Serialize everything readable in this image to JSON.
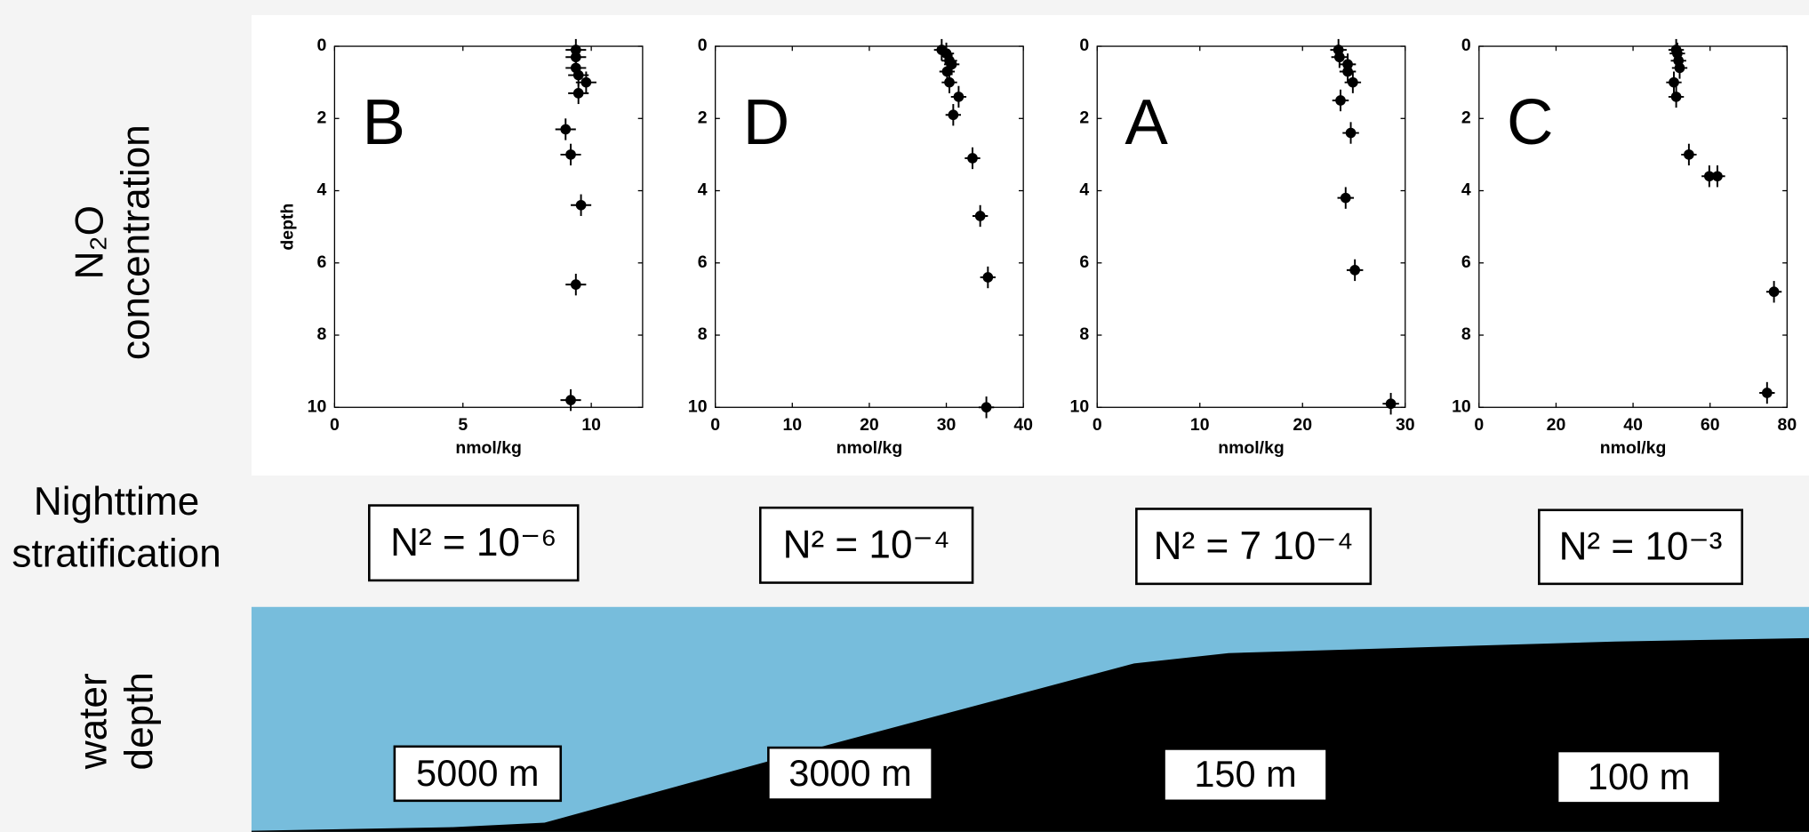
{
  "chart_data": [
    {
      "type": "scatter",
      "letter": "B",
      "letter_color": "#ff00ff",
      "xlabel": "nmol/kg",
      "ylabel": "depth",
      "color": "#000000",
      "x": [
        9.4,
        9.4,
        9.4,
        9.5,
        9.8,
        9.5,
        9.0,
        9.2,
        9.6,
        9.4,
        9.2
      ],
      "y": [
        0.1,
        0.3,
        0.6,
        0.8,
        1.0,
        1.3,
        2.3,
        3.0,
        4.4,
        6.6,
        9.8
      ],
      "xerr": 0.4,
      "yerr": 0.3,
      "xlim": [
        0,
        12
      ],
      "xticks": [
        0,
        5,
        10
      ],
      "ylim": [
        0,
        10
      ],
      "yticks": [
        0,
        2,
        4,
        6,
        8,
        10
      ],
      "y_inverted": true
    },
    {
      "type": "scatter",
      "letter": "D",
      "letter_color": "#fdb714",
      "xlabel": "nmol/kg",
      "color": "#000000",
      "x": [
        29.4,
        30.0,
        30.4,
        30.7,
        30.1,
        30.4,
        31.6,
        30.9,
        33.4,
        34.4,
        35.4,
        35.2
      ],
      "y": [
        0.1,
        0.2,
        0.4,
        0.5,
        0.7,
        1.0,
        1.4,
        1.9,
        3.1,
        4.7,
        6.4,
        10.0
      ],
      "xerr": 1,
      "yerr": 0.3,
      "xlim": [
        0,
        40
      ],
      "xticks": [
        0,
        10,
        20,
        30,
        40
      ],
      "ylim": [
        0,
        10
      ],
      "yticks": [
        0,
        2,
        4,
        6,
        8,
        10
      ],
      "y_inverted": true
    },
    {
      "type": "scatter",
      "letter": "A",
      "letter_color": "#00e0e0",
      "xlabel": "nmol/kg",
      "color": "#000000",
      "x": [
        23.5,
        23.6,
        24.4,
        24.4,
        24.9,
        23.7,
        24.7,
        24.2,
        25.1,
        28.6
      ],
      "y": [
        0.1,
        0.3,
        0.5,
        0.7,
        1.0,
        1.5,
        2.4,
        4.2,
        6.2,
        9.9
      ],
      "xerr": 0.8,
      "yerr": 0.3,
      "xlim": [
        0,
        30
      ],
      "xticks": [
        0,
        10,
        20,
        30
      ],
      "ylim": [
        0,
        10
      ],
      "yticks": [
        0,
        2,
        4,
        6,
        8,
        10
      ],
      "y_inverted": true
    },
    {
      "type": "scatter",
      "letter": "C",
      "letter_color": "#000000",
      "xlabel": "nmol/kg",
      "color": "#000000",
      "x": [
        51.2,
        51.5,
        51.8,
        52.1,
        50.6,
        51.2,
        54.5,
        59.8,
        61.9,
        76.6,
        74.8
      ],
      "y": [
        0.1,
        0.2,
        0.4,
        0.6,
        1.0,
        1.4,
        3.0,
        3.6,
        3.6,
        6.8,
        9.6
      ],
      "xerr": 2,
      "yerr": 0.3,
      "xlim": [
        0,
        80
      ],
      "xticks": [
        0,
        20,
        40,
        60,
        80
      ],
      "ylim": [
        0,
        10
      ],
      "yticks": [
        0,
        2,
        4,
        6,
        8,
        10
      ],
      "y_inverted": true
    }
  ],
  "row_labels": {
    "concentration": [
      "N₂O",
      "concentration"
    ],
    "stratification": [
      "Nighttime",
      "stratification"
    ],
    "water_depth": [
      "water",
      "depth"
    ]
  },
  "stratification": [
    "N² = 10⁻⁶",
    "N² = 10⁻⁴",
    "N² = 7 10⁻⁴",
    "N² = 10⁻³"
  ],
  "water_depth": [
    "5000 m",
    "3000 m",
    "150 m",
    "100 m"
  ]
}
